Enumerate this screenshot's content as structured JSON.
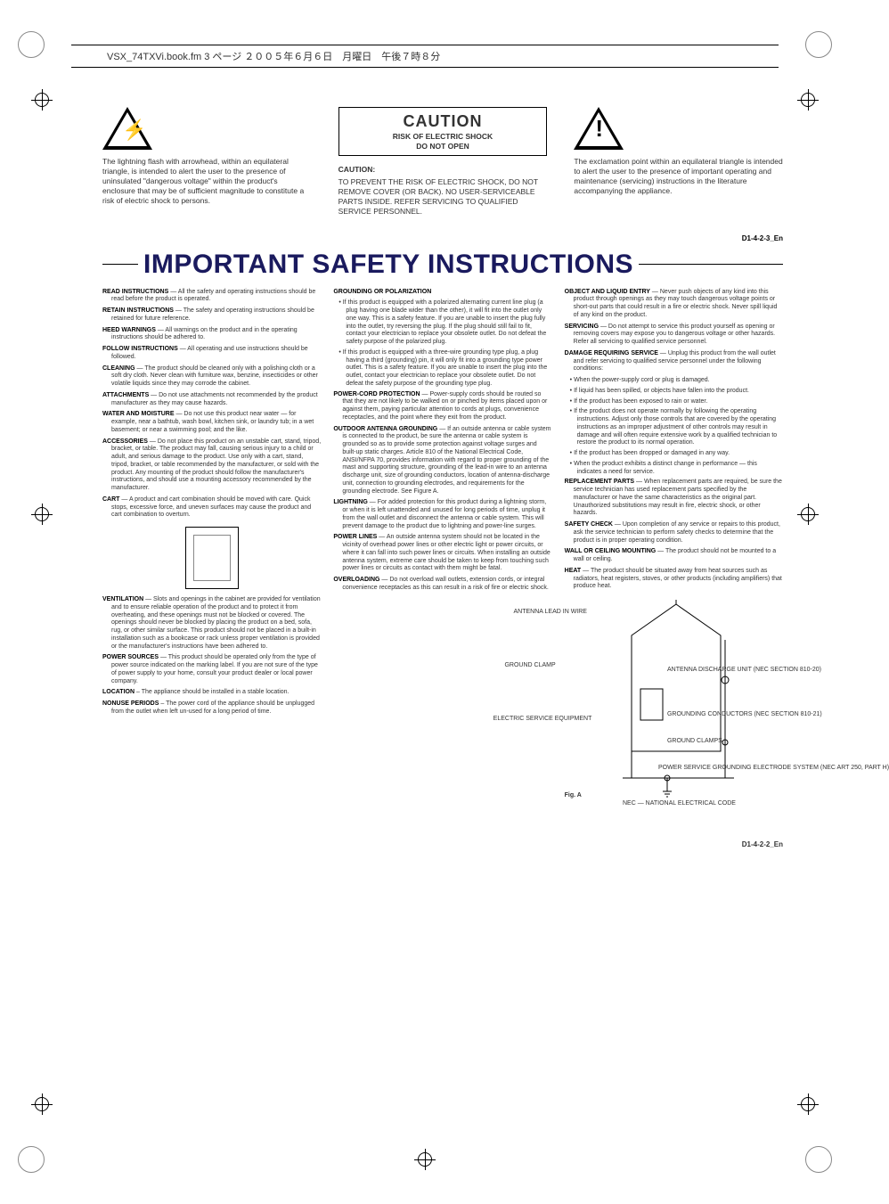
{
  "header": {
    "text": "VSX_74TXVi.book.fm 3 ページ ２００５年６月６日　月曜日　午後７時８分"
  },
  "warning_row": {
    "left": {
      "text": "The lightning flash with arrowhead, within an equilateral triangle, is intended to alert the user to the presence of uninsulated \"dangerous voltage\" within the product's enclosure that may be of sufficient magnitude to constitute a risk of electric shock to persons."
    },
    "center": {
      "box_title": "CAUTION",
      "box_line1": "RISK OF ELECTRIC SHOCK",
      "box_line2": "DO NOT OPEN",
      "label": "CAUTION:",
      "text": "TO PREVENT THE RISK OF ELECTRIC SHOCK, DO NOT REMOVE COVER (OR BACK).  NO USER-SERVICEABLE PARTS INSIDE.  REFER SERVICING TO QUALIFIED SERVICE PERSONNEL."
    },
    "right": {
      "text": "The exclamation point within an equilateral triangle is intended to alert the user to the presence of important operating and maintenance (servicing) instructions in the literature accompanying the appliance."
    },
    "code": "D1-4-2-3_En"
  },
  "main_title": "IMPORTANT SAFETY INSTRUCTIONS",
  "col1": [
    {
      "term": "READ INSTRUCTIONS",
      "body": " — All the safety and operating instructions should be read before the product is operated."
    },
    {
      "term": "RETAIN INSTRUCTIONS",
      "body": " — The safety and operating instructions should be retained for future reference."
    },
    {
      "term": "HEED WARNINGS",
      "body": " — All warnings on the product and in the operating instructions should be adhered to."
    },
    {
      "term": "FOLLOW INSTRUCTIONS",
      "body": " — All operating and use instructions should be followed."
    },
    {
      "term": "CLEANING",
      "body": " — The product should be cleaned only with a polishing cloth or a soft dry cloth. Never clean with furniture wax, benzine, insecticides or other volatile liquids since they may corrode the cabinet."
    },
    {
      "term": "ATTACHMENTS",
      "body": " — Do not use attachments not recommended by the product manufacturer as they may cause hazards."
    },
    {
      "term": "WATER AND MOISTURE",
      "body": " — Do not use this product near water — for example, near a bathtub, wash bowl, kitchen sink, or laundry tub; in a wet basement; or near a swimming pool; and the like."
    },
    {
      "term": "ACCESSORIES",
      "body": " — Do not place this product on an unstable cart, stand, tripod, bracket, or table. The product may fall, causing serious injury to a child or adult, and serious damage to the product. Use only with a cart, stand, tripod, bracket, or table recommended by the manufacturer, or sold with the product. Any mounting of the product should follow the manufacturer's instructions, and should use a mounting accessory recommended by the manufacturer."
    },
    {
      "term": "CART",
      "body": " — A product and cart combination should be moved with care. Quick stops, excessive force, and uneven surfaces may cause the product and cart combination to overturn."
    }
  ],
  "col1b": [
    {
      "term": "VENTILATION",
      "body": " — Slots and openings in the cabinet are provided for ventilation and to ensure reliable operation of the product and to protect it from overheating, and these openings must not be blocked or covered. The openings should never be blocked by placing the product on a bed, sofa, rug, or other similar surface. This product should not be placed in a built-in installation such as a bookcase or rack unless proper ventilation is provided or the manufacturer's instructions have been adhered to."
    },
    {
      "term": "POWER SOURCES",
      "body": " — This product should be operated only from the type of power source indicated on the marking label. If you are not sure of the type of power supply to your home, consult your product dealer or local power company."
    },
    {
      "term": "LOCATION",
      "body": " – The appliance should be installed in a stable location."
    },
    {
      "term": "NONUSE PERIODS",
      "body": " – The power cord of the appliance should be unplugged from the outlet when left un-used for a long period of time."
    }
  ],
  "col2_header": "GROUNDING OR POLARIZATION",
  "col2_bullets": [
    "If this product is equipped with a polarized alternating current line plug (a plug having one blade wider than the other), it will fit into the outlet only one way. This is a safety feature. If you are unable to insert the plug fully into the outlet, try reversing the plug. If the plug should still fail to fit, contact your electrician to replace your obsolete outlet. Do not defeat the safety purpose of the polarized plug.",
    "If this product is equipped with a three-wire grounding type plug, a plug having a third (grounding) pin, it will only fit into a grounding type power outlet. This is a safety feature. If you are unable to insert the plug into the outlet, contact your electrician to replace your obsolete outlet. Do not defeat the safety purpose of the grounding type plug."
  ],
  "col2_items": [
    {
      "term": "POWER-CORD PROTECTION",
      "body": " — Power-supply cords should be routed so that they are not likely to be walked on or pinched by items placed upon or against them, paying particular attention to cords at plugs, convenience receptacles, and the point where they exit from the product."
    },
    {
      "term": "OUTDOOR ANTENNA GROUNDING",
      "body": " — If an outside antenna or cable system is connected to the product, be sure the antenna or cable system is grounded so as to provide some protection against voltage surges and built-up static charges. Article 810 of the National Electrical Code, ANSI/NFPA 70, provides information with regard to proper grounding of the mast and supporting structure, grounding of the lead-in wire to an antenna discharge unit, size of grounding conductors, location of antenna-discharge unit, connection to grounding electrodes, and requirements for the grounding electrode. See Figure A."
    },
    {
      "term": "LIGHTNING",
      "body": " — For added protection for this product during a lightning storm, or when it is left unattended and unused for long periods of time, unplug it from the wall outlet and disconnect the antenna or cable system. This will prevent damage to the product due to lightning and power-line surges."
    },
    {
      "term": "POWER LINES",
      "body": " — An outside antenna system should not be located in the vicinity of overhead power lines or other electric light or power circuits, or where it can fall into such power lines or circuits. When installing an outside antenna system, extreme care should be taken to keep from touching such power lines or circuits as contact with them might be fatal."
    },
    {
      "term": "OVERLOADING",
      "body": " — Do not overload wall outlets, extension cords, or integral convenience receptacles as this can result in a risk of fire or electric shock."
    }
  ],
  "col3_items": [
    {
      "term": "OBJECT AND LIQUID ENTRY",
      "body": " — Never push objects of any kind into this product through openings as they may touch dangerous voltage points or short-out parts that could result in a fire or electric shock. Never spill liquid of any kind on the product."
    },
    {
      "term": "SERVICING",
      "body": " — Do not attempt to service this product yourself as opening or removing covers may expose you to dangerous voltage or other hazards. Refer all servicing to qualified service personnel."
    },
    {
      "term": "DAMAGE REQUIRING SERVICE",
      "body": " — Unplug this product from the wall outlet and refer servicing to qualified service personnel under the following conditions:"
    }
  ],
  "col3_bullets": [
    "When the power-supply cord or plug is damaged.",
    "If liquid has been spilled, or objects have fallen into the product.",
    "If the product has been exposed to rain or water.",
    "If the product does not operate normally by following the operating instructions. Adjust only those controls that are covered by the operating instructions as an improper adjustment of other controls may result in damage and will often require extensive work by a qualified technician to restore the product to its normal operation.",
    "If the product has been dropped or damaged in any way.",
    "When the product exhibits a distinct change in performance — this indicates a need for service."
  ],
  "col3_items2": [
    {
      "term": "REPLACEMENT PARTS",
      "body": " — When replacement parts are required, be sure the service technician has used replacement parts specified by the manufacturer or have the same characteristics as the original part. Unauthorized substitutions may result in fire, electric shock, or other hazards."
    },
    {
      "term": "SAFETY CHECK",
      "body": " — Upon completion of any service or repairs to this product, ask the service technician to perform safety checks to determine that the product is in proper operating condition."
    },
    {
      "term": "WALL OR CEILING MOUNTING",
      "body": " — The product should not be mounted to a wall or ceiling."
    },
    {
      "term": "HEAT",
      "body": " — The product should be situated away from heat sources such as radiators, heat registers, stoves, or other products (including amplifiers) that produce heat."
    }
  ],
  "figure": {
    "labels": {
      "ground_clamp": "GROUND\nCLAMP",
      "electric_service": "ELECTRIC\nSERVICE\nEQUIPMENT",
      "antenna_lead": "ANTENNA\nLEAD IN\nWIRE",
      "antenna_discharge": "ANTENNA\nDISCHARGE UNIT\n(NEC SECTION 810-20)",
      "grounding_conductors": "GROUNDING CONDUCTORS\n(NEC SECTION 810-21)",
      "ground_clamps": "GROUND CLAMPS",
      "power_service": "POWER SERVICE GROUNDING\nELECTRODE SYSTEM\n(NEC ART 250, PART H)",
      "nec": "NEC — NATIONAL ELECTRICAL CODE"
    },
    "caption": "Fig. A",
    "code": "D1-4-2-2_En"
  },
  "colors": {
    "title": "#1a1a5e",
    "text": "#333333",
    "background": "#ffffff"
  }
}
